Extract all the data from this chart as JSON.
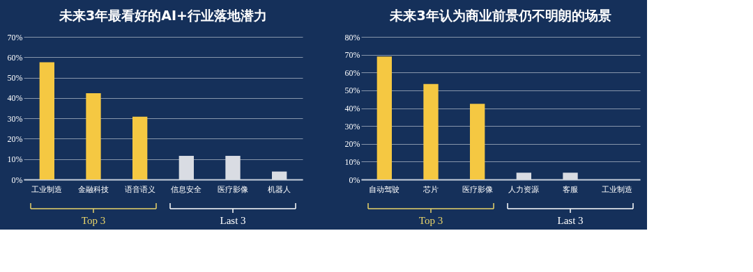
{
  "chart_data": [
    {
      "type": "bar",
      "title": "未来3年最看好的AI+行业落地潜力",
      "categories": [
        "工业制造",
        "金融科技",
        "语音语义",
        "信息安全",
        "医疗影像",
        "机器人"
      ],
      "values": [
        57.5,
        42.3,
        30.8,
        11.6,
        11.6,
        3.9
      ],
      "colors": [
        "#f5c842",
        "#f5c842",
        "#f5c842",
        "#d9dce3",
        "#d9dce3",
        "#d9dce3"
      ],
      "ylim": [
        0,
        70
      ],
      "yticks": [
        {
          "value": 0,
          "label": "0%"
        },
        {
          "value": 10,
          "label": "10%"
        },
        {
          "value": 20,
          "label": "20%"
        },
        {
          "value": 30,
          "label": "30%"
        },
        {
          "value": 40,
          "label": "40%"
        },
        {
          "value": 50,
          "label": "50%"
        },
        {
          "value": 60,
          "label": "60%"
        },
        {
          "value": 70,
          "label": "70%"
        }
      ],
      "grid": "y",
      "annotations": [
        "Top 3",
        "Last 3"
      ]
    },
    {
      "type": "bar",
      "title": "未来3年认为商业前景仍不明朗的场景",
      "categories": [
        "自动驾驶",
        "芯片",
        "医疗影像",
        "人力资源",
        "客服",
        "工业制造"
      ],
      "values": [
        69.0,
        53.6,
        42.4,
        3.8,
        3.8,
        0
      ],
      "colors": [
        "#f5c842",
        "#f5c842",
        "#f5c842",
        "#d9dce3",
        "#d9dce3",
        "#d9dce3"
      ],
      "ylim": [
        0,
        80
      ],
      "yticks": [
        {
          "value": 0,
          "label": "0%"
        },
        {
          "value": 10,
          "label": "10%"
        },
        {
          "value": 20,
          "label": "20%"
        },
        {
          "value": 30,
          "label": "30%"
        },
        {
          "value": 40,
          "label": "40%"
        },
        {
          "value": 50,
          "label": "50%"
        },
        {
          "value": 60,
          "label": "60%"
        },
        {
          "value": 70,
          "label": "70%"
        },
        {
          "value": 80,
          "label": "80%"
        }
      ],
      "grid": "y",
      "annotations": [
        "Top 3",
        "Last 3"
      ]
    }
  ]
}
